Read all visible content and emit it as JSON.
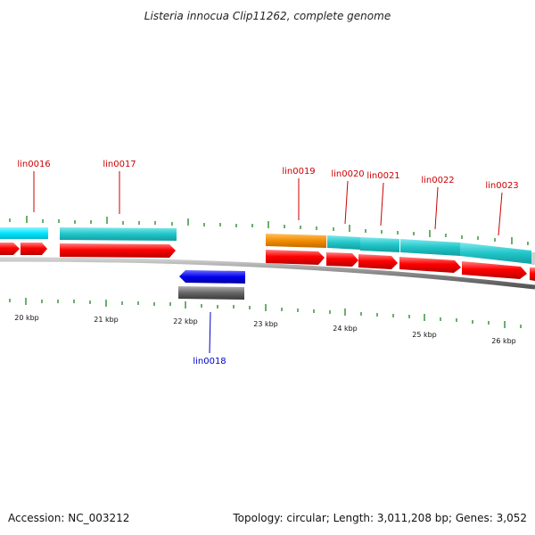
{
  "title": "Listeria innocua Clip11262, complete genome",
  "footer": {
    "accession": "Accession: NC_003212",
    "summary": "Topology: circular; Length: 3,011,208 bp; Genes: 3,052"
  },
  "scale_labels": [
    "20 kbp",
    "21 kbp",
    "22 kbp",
    "23 kbp",
    "24 kbp",
    "25 kbp",
    "26 kbp"
  ],
  "gene_labels": [
    {
      "id": "lin0016",
      "strand": "forward"
    },
    {
      "id": "lin0017",
      "strand": "forward"
    },
    {
      "id": "lin0018",
      "strand": "reverse"
    },
    {
      "id": "lin0019",
      "strand": "forward"
    },
    {
      "id": "lin0020",
      "strand": "forward"
    },
    {
      "id": "lin0021",
      "strand": "forward"
    },
    {
      "id": "lin0022",
      "strand": "forward"
    },
    {
      "id": "lin0023",
      "strand": "forward"
    }
  ],
  "colors": {
    "cds": "#ff0000",
    "cyan_high": "#00e5ff",
    "cyan": "#20c5c8",
    "orange": "#f28c00",
    "reverse_gene": "#0000ee",
    "reverse_cds": "#666666",
    "backbone": "#888888",
    "tick": "#2e8b2e",
    "label_forward": "#cc0000",
    "label_reverse": "#0000cc"
  }
}
